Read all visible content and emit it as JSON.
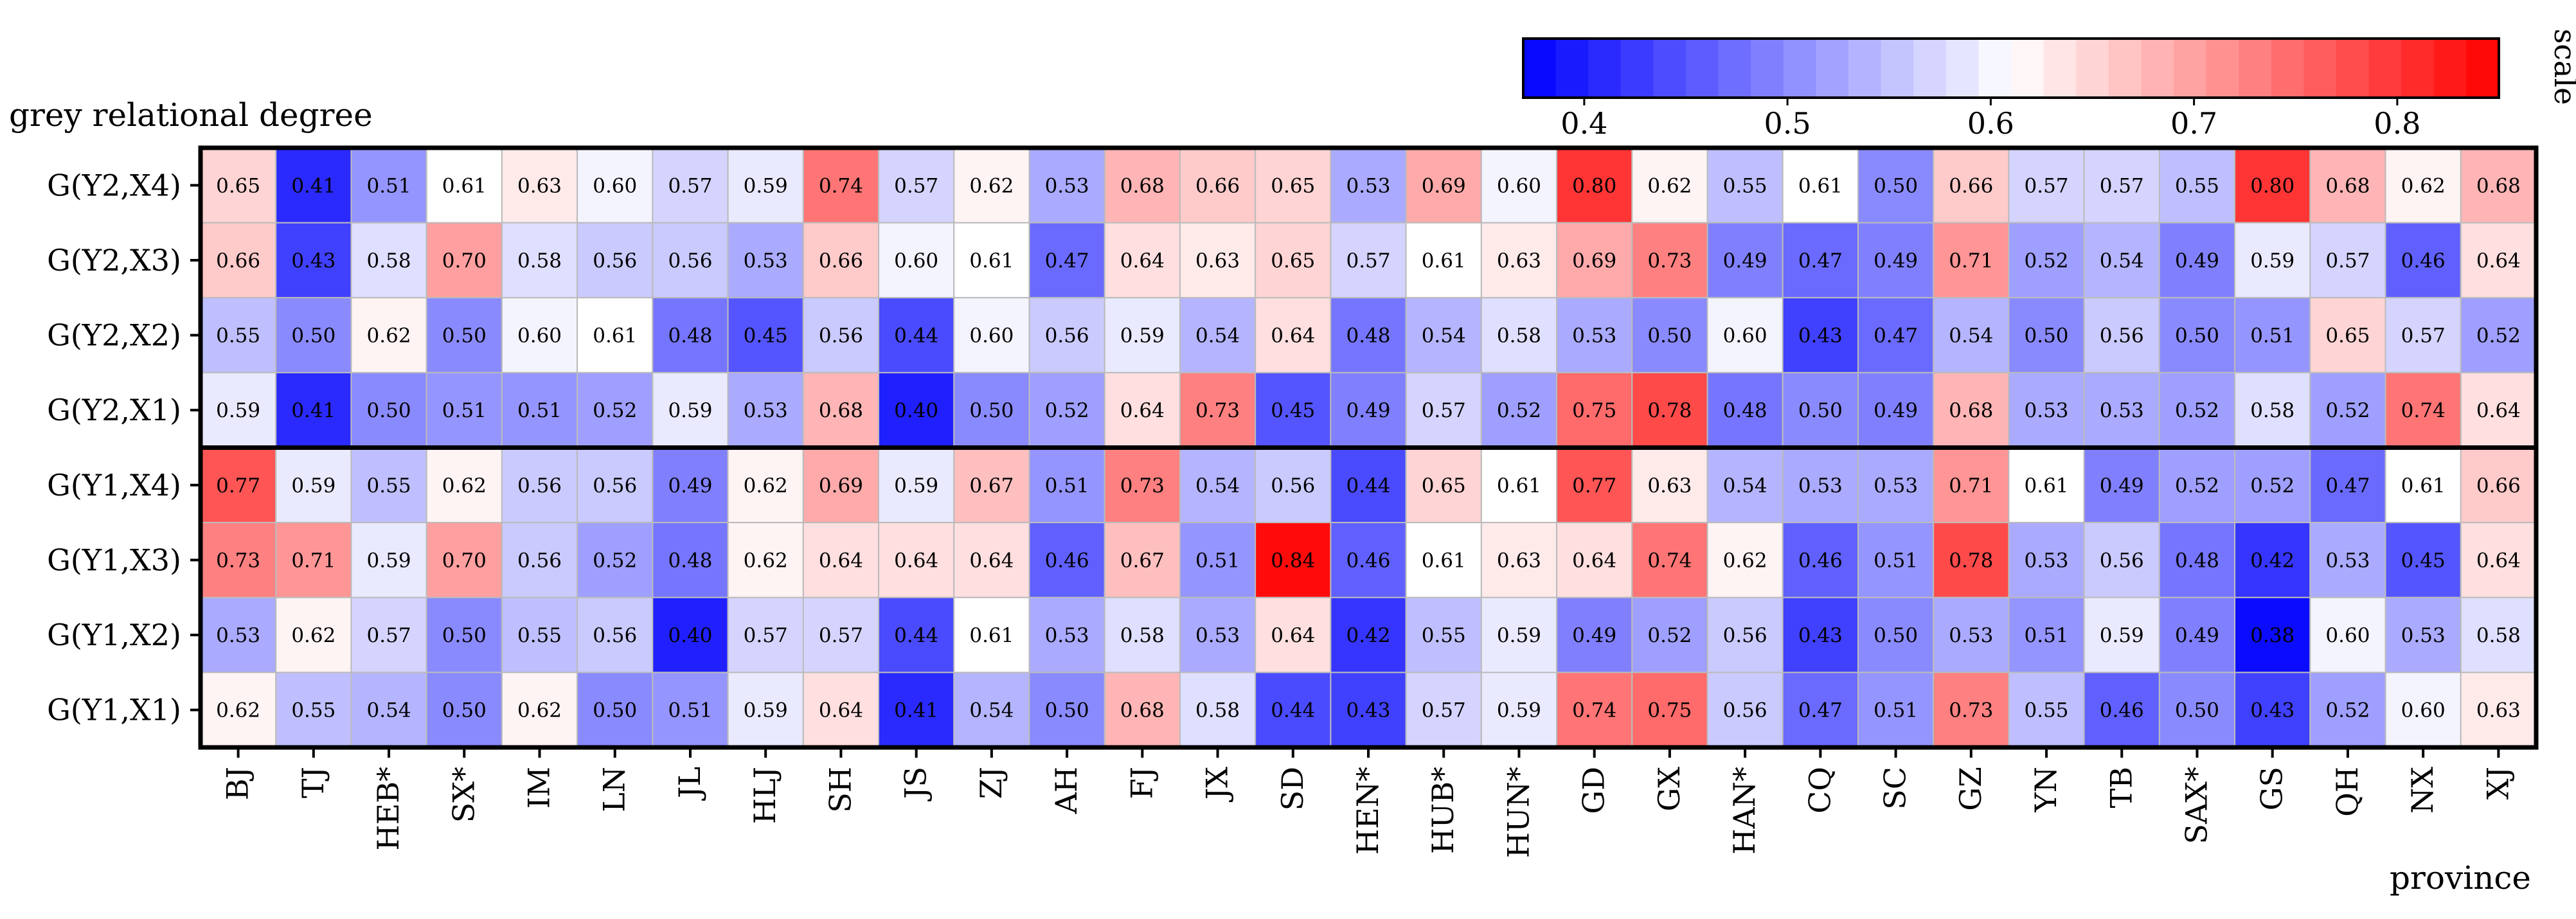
{
  "chart_data": {
    "type": "heatmap",
    "title": "grey relational degree",
    "xlabel": "province",
    "colorbar_label": "scale",
    "colorbar_ticks": [
      0.4,
      0.5,
      0.6,
      0.7,
      0.8
    ],
    "colorbar_tick_labels": [
      "0.4",
      "0.5",
      "0.6",
      "0.7",
      "0.8"
    ],
    "color_range": [
      0.37,
      0.85
    ],
    "colors": {
      "low": "#0000ff",
      "mid": "#ffffff",
      "high": "#ff0000",
      "mid_value": 0.61,
      "frame": "#000000",
      "cell_border": "#bbbbbb"
    },
    "columns": [
      "BJ",
      "TJ",
      "HEB*",
      "SX*",
      "IM",
      "LN",
      "JL",
      "HLJ",
      "SH",
      "JS",
      "ZJ",
      "AH",
      "FJ",
      "JX",
      "SD",
      "HEN*",
      "HUB*",
      "HUN*",
      "GD",
      "GX",
      "HAN*",
      "CQ",
      "SC",
      "GZ",
      "YN",
      "TB",
      "SAX*",
      "GS",
      "QH",
      "NX",
      "XJ"
    ],
    "rows": [
      {
        "label": "G(Y2,X4)",
        "values": [
          0.65,
          0.41,
          0.51,
          0.61,
          0.63,
          0.6,
          0.57,
          0.59,
          0.74,
          0.57,
          0.62,
          0.53,
          0.68,
          0.66,
          0.65,
          0.53,
          0.69,
          0.6,
          0.8,
          0.62,
          0.55,
          0.61,
          0.5,
          0.66,
          0.57,
          0.57,
          0.55,
          0.8,
          0.68,
          0.62,
          0.68
        ]
      },
      {
        "label": "G(Y2,X3)",
        "values": [
          0.66,
          0.43,
          0.58,
          0.7,
          0.58,
          0.56,
          0.56,
          0.53,
          0.66,
          0.6,
          0.61,
          0.47,
          0.64,
          0.63,
          0.65,
          0.57,
          0.61,
          0.63,
          0.69,
          0.73,
          0.49,
          0.47,
          0.49,
          0.71,
          0.52,
          0.54,
          0.49,
          0.59,
          0.57,
          0.46,
          0.64
        ]
      },
      {
        "label": "G(Y2,X2)",
        "values": [
          0.55,
          0.5,
          0.62,
          0.5,
          0.6,
          0.61,
          0.48,
          0.45,
          0.56,
          0.44,
          0.6,
          0.56,
          0.59,
          0.54,
          0.64,
          0.48,
          0.54,
          0.58,
          0.53,
          0.5,
          0.6,
          0.43,
          0.47,
          0.54,
          0.5,
          0.56,
          0.5,
          0.51,
          0.65,
          0.57,
          0.52
        ]
      },
      {
        "label": "G(Y2,X1)",
        "values": [
          0.59,
          0.41,
          0.5,
          0.51,
          0.51,
          0.52,
          0.59,
          0.53,
          0.68,
          0.4,
          0.5,
          0.52,
          0.64,
          0.73,
          0.45,
          0.49,
          0.57,
          0.52,
          0.75,
          0.78,
          0.48,
          0.5,
          0.49,
          0.68,
          0.53,
          0.53,
          0.52,
          0.58,
          0.52,
          0.74,
          0.64
        ]
      },
      {
        "label": "G(Y1,X4)",
        "values": [
          0.77,
          0.59,
          0.55,
          0.62,
          0.56,
          0.56,
          0.49,
          0.62,
          0.69,
          0.59,
          0.67,
          0.51,
          0.73,
          0.54,
          0.56,
          0.44,
          0.65,
          0.61,
          0.77,
          0.63,
          0.54,
          0.53,
          0.53,
          0.71,
          0.61,
          0.49,
          0.52,
          0.52,
          0.47,
          0.61,
          0.66
        ]
      },
      {
        "label": "G(Y1,X3)",
        "values": [
          0.73,
          0.71,
          0.59,
          0.7,
          0.56,
          0.52,
          0.48,
          0.62,
          0.64,
          0.64,
          0.64,
          0.46,
          0.67,
          0.51,
          0.84,
          0.46,
          0.61,
          0.63,
          0.64,
          0.74,
          0.62,
          0.46,
          0.51,
          0.78,
          0.53,
          0.56,
          0.48,
          0.42,
          0.53,
          0.45,
          0.64
        ]
      },
      {
        "label": "G(Y1,X2)",
        "values": [
          0.53,
          0.62,
          0.57,
          0.5,
          0.55,
          0.56,
          0.4,
          0.57,
          0.57,
          0.44,
          0.61,
          0.53,
          0.58,
          0.53,
          0.64,
          0.42,
          0.55,
          0.59,
          0.49,
          0.52,
          0.56,
          0.43,
          0.5,
          0.53,
          0.51,
          0.59,
          0.49,
          0.38,
          0.6,
          0.53,
          0.58
        ]
      },
      {
        "label": "G(Y1,X1)",
        "values": [
          0.62,
          0.55,
          0.54,
          0.5,
          0.62,
          0.5,
          0.51,
          0.59,
          0.64,
          0.41,
          0.54,
          0.5,
          0.68,
          0.58,
          0.44,
          0.43,
          0.57,
          0.59,
          0.74,
          0.75,
          0.56,
          0.47,
          0.51,
          0.73,
          0.55,
          0.46,
          0.5,
          0.43,
          0.52,
          0.6,
          0.63
        ]
      }
    ]
  }
}
